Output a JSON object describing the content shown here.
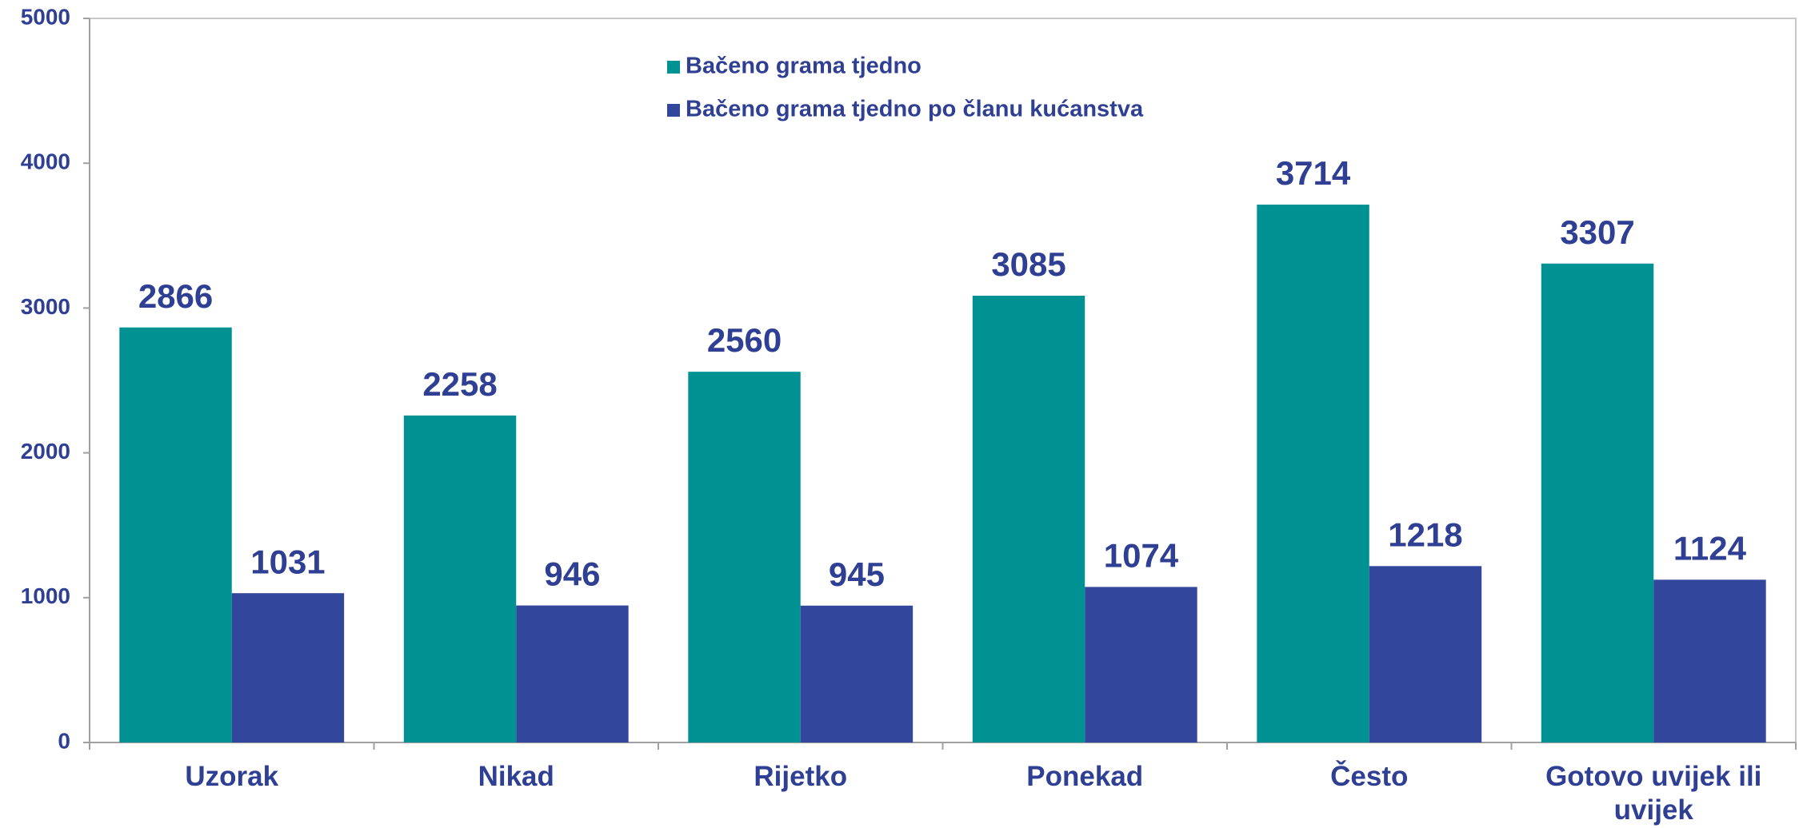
{
  "chart_data": {
    "type": "bar",
    "categories": [
      "Uzorak",
      "Nikad",
      "Rijetko",
      "Ponekad",
      "Često",
      "Gotovo uvijek ili uvijek"
    ],
    "series": [
      {
        "name": "Bačeno grama tjedno",
        "color": "#009193",
        "values": [
          2866,
          2258,
          2560,
          3085,
          3714,
          3307
        ]
      },
      {
        "name": "Bačeno grama tjedno po članu kućanstva",
        "color": "#32469b",
        "values": [
          1031,
          946,
          945,
          1074,
          1218,
          1124
        ]
      }
    ],
    "ylim": [
      0,
      5000
    ],
    "yticks": [
      0,
      1000,
      2000,
      3000,
      4000,
      5000
    ],
    "grid": false
  }
}
